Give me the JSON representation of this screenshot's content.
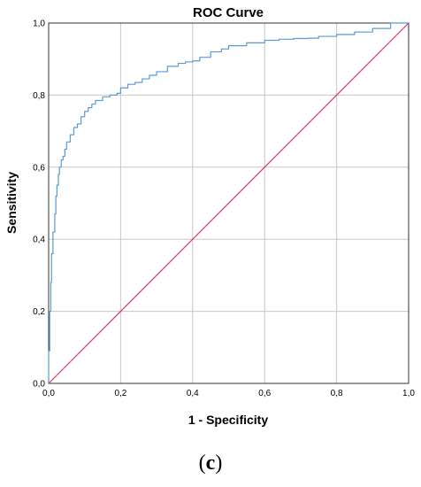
{
  "chart_data": {
    "type": "line",
    "title": "ROC Curve",
    "xlabel": "1 - Specificity",
    "ylabel": "Sensitivity",
    "xlim": [
      0,
      1
    ],
    "ylim": [
      0,
      1
    ],
    "grid": true,
    "legend": "none",
    "x_ticks": [
      {
        "value": 0.0,
        "label": "0,0"
      },
      {
        "value": 0.2,
        "label": "0,2"
      },
      {
        "value": 0.4,
        "label": "0,4"
      },
      {
        "value": 0.6,
        "label": "0,6"
      },
      {
        "value": 0.8,
        "label": "0,8"
      },
      {
        "value": 1.0,
        "label": "1,0"
      }
    ],
    "y_ticks": [
      {
        "value": 0.0,
        "label": "0,0"
      },
      {
        "value": 0.2,
        "label": "0,2"
      },
      {
        "value": 0.4,
        "label": "0,4"
      },
      {
        "value": 0.6,
        "label": "0,6"
      },
      {
        "value": 0.8,
        "label": "0,8"
      },
      {
        "value": 1.0,
        "label": "1,0"
      }
    ],
    "series": [
      {
        "color": "#5b9bd5",
        "x": [
          0.0,
          0.003,
          0.006,
          0.008,
          0.012,
          0.017,
          0.02,
          0.023,
          0.027,
          0.03,
          0.035,
          0.04,
          0.045,
          0.05,
          0.06,
          0.07,
          0.08,
          0.09,
          0.1,
          0.11,
          0.12,
          0.13,
          0.15,
          0.17,
          0.19,
          0.2,
          0.22,
          0.24,
          0.26,
          0.28,
          0.3,
          0.33,
          0.36,
          0.38,
          0.4,
          0.42,
          0.45,
          0.48,
          0.5,
          0.55,
          0.6,
          0.64,
          0.68,
          0.72,
          0.75,
          0.8,
          0.85,
          0.9,
          0.95,
          1.0
        ],
        "y": [
          0.0,
          0.09,
          0.2,
          0.28,
          0.36,
          0.42,
          0.47,
          0.52,
          0.55,
          0.58,
          0.6,
          0.62,
          0.63,
          0.65,
          0.67,
          0.69,
          0.71,
          0.72,
          0.74,
          0.755,
          0.765,
          0.775,
          0.785,
          0.795,
          0.8,
          0.805,
          0.82,
          0.83,
          0.835,
          0.845,
          0.855,
          0.865,
          0.88,
          0.888,
          0.892,
          0.895,
          0.905,
          0.92,
          0.928,
          0.937,
          0.945,
          0.952,
          0.955,
          0.957,
          0.958,
          0.963,
          0.968,
          0.975,
          0.985,
          1.0
        ]
      },
      {
        "color": "#e0336b",
        "x": [
          0.0,
          1.0
        ],
        "y": [
          0.0,
          1.0
        ]
      }
    ]
  },
  "caption": {
    "open": "(",
    "letter": "c",
    "close": ")"
  }
}
